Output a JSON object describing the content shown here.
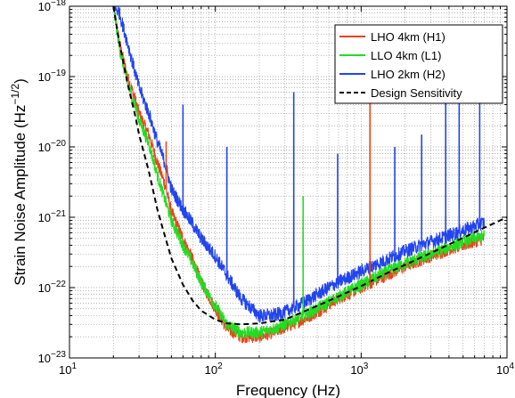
{
  "chart_data": {
    "type": "line",
    "xlabel": "Frequency (Hz)",
    "ylabel_main": "Strain Noise Amplitude (Hz",
    "ylabel_exp": "−1/2",
    "ylabel_close": ")",
    "xscale": "log",
    "yscale": "log",
    "xlim": [
      10,
      10000
    ],
    "ylim": [
      1e-23,
      1e-18
    ],
    "grid": true,
    "legend_position": "top-right",
    "x_ticks": [
      {
        "value": 10,
        "base": "10",
        "exp": "1"
      },
      {
        "value": 100,
        "base": "10",
        "exp": "2"
      },
      {
        "value": 1000,
        "base": "10",
        "exp": "3"
      },
      {
        "value": 10000,
        "base": "10",
        "exp": "4"
      }
    ],
    "y_ticks": [
      {
        "value": 1e-23,
        "base": "10",
        "exp": "−23"
      },
      {
        "value": 1e-22,
        "base": "10",
        "exp": "−22"
      },
      {
        "value": 1e-21,
        "base": "10",
        "exp": "−21"
      },
      {
        "value": 1e-20,
        "base": "10",
        "exp": "−20"
      },
      {
        "value": 1e-19,
        "base": "10",
        "exp": "−19"
      },
      {
        "value": 1e-18,
        "base": "10",
        "exp": "−18"
      }
    ],
    "series": [
      {
        "name": "LHO 4km (H1)",
        "color": "#e8461c",
        "style": "solid",
        "x": [
          20,
          22,
          25,
          28,
          30,
          35,
          40,
          45,
          50,
          60,
          70,
          80,
          100,
          120,
          150,
          200,
          250,
          300,
          400,
          500,
          700,
          1000,
          1500,
          2000,
          3000,
          4000,
          5000,
          6000,
          7000
        ],
        "y": [
          1e-18,
          3e-19,
          1e-19,
          5e-20,
          3e-20,
          1.5e-20,
          6e-21,
          3e-21,
          1.2e-21,
          5e-22,
          2.5e-22,
          1.2e-22,
          5e-23,
          2.6e-23,
          2e-23,
          2e-23,
          2.3e-23,
          2.7e-23,
          3.5e-23,
          4.5e-23,
          7e-23,
          1e-22,
          1.5e-22,
          2e-22,
          2.8e-22,
          3.5e-22,
          4e-22,
          4.5e-22,
          5e-22
        ]
      },
      {
        "name": "LLO 4km (L1)",
        "color": "#22dd22",
        "style": "solid",
        "x": [
          20,
          22,
          25,
          28,
          30,
          35,
          40,
          45,
          50,
          60,
          70,
          80,
          100,
          120,
          150,
          200,
          250,
          300,
          400,
          500,
          700,
          1000,
          1500,
          2000,
          3000,
          4000,
          5000,
          6000,
          7000
        ],
        "y": [
          1e-18,
          2.5e-19,
          8e-20,
          4e-20,
          2.4e-20,
          1.1e-20,
          4e-21,
          1.8e-21,
          9e-22,
          4e-22,
          2.2e-22,
          1.2e-22,
          5.5e-23,
          3e-23,
          2.3e-23,
          2.3e-23,
          2.6e-23,
          3e-23,
          4e-23,
          5e-23,
          7.5e-23,
          1.1e-22,
          1.7e-22,
          2.2e-22,
          3e-22,
          3.8e-22,
          4.5e-22,
          5e-22,
          5.5e-22
        ]
      },
      {
        "name": "LHO 2km (H2)",
        "color": "#2244ee",
        "style": "solid",
        "x": [
          20,
          22,
          25,
          28,
          30,
          35,
          40,
          45,
          50,
          60,
          70,
          80,
          100,
          120,
          150,
          200,
          250,
          300,
          400,
          500,
          700,
          1000,
          1500,
          2000,
          3000,
          4000,
          5000,
          6000,
          7000
        ],
        "y": [
          1e-18,
          8e-19,
          3e-19,
          1.2e-19,
          7e-20,
          3e-20,
          1.2e-20,
          6e-21,
          2.5e-21,
          1.3e-21,
          8e-22,
          5e-22,
          2.8e-22,
          1.5e-22,
          7e-23,
          4e-23,
          4e-23,
          4.5e-23,
          6e-23,
          8e-23,
          1.2e-22,
          1.7e-22,
          2.5e-22,
          3.3e-22,
          4.5e-22,
          5.5e-22,
          6.5e-22,
          7.5e-22,
          8.5e-22
        ]
      },
      {
        "name": "Design Sensitivity",
        "color": "#000000",
        "style": "dashed",
        "x": [
          20,
          22,
          25,
          28,
          30,
          35,
          40,
          45,
          50,
          60,
          70,
          80,
          100,
          120,
          150,
          200,
          300,
          500,
          700,
          1000,
          1500,
          2000,
          3000,
          5000,
          7000,
          10000
        ],
        "y": [
          1e-18,
          3e-19,
          8e-20,
          3e-20,
          1.5e-20,
          4.5e-21,
          1.3e-21,
          5.5e-22,
          2.6e-22,
          1.1e-22,
          6.5e-23,
          4.7e-23,
          3.5e-23,
          3.1e-23,
          3e-23,
          3.1e-23,
          3.5e-23,
          5.5e-23,
          7.5e-23,
          1.05e-22,
          1.6e-22,
          2.1e-22,
          3.1e-22,
          5.1e-22,
          7.1e-22,
          1e-21
        ]
      }
    ],
    "spikes": [
      {
        "series": "LHO 2km (H2)",
        "x": 120,
        "y": 1e-20
      },
      {
        "series": "LHO 2km (H2)",
        "x": 60,
        "y": 4e-20
      },
      {
        "series": "LHO 2km (H2)",
        "x": 345,
        "y": 6e-20
      },
      {
        "series": "LHO 2km (H2)",
        "x": 690,
        "y": 8e-21
      },
      {
        "series": "LLO 4km (L1)",
        "x": 1150,
        "y": 2e-19
      },
      {
        "series": "LHO 4km (H1)",
        "x": 1150,
        "y": 2e-19
      },
      {
        "series": "LHO 2km (H2)",
        "x": 1700,
        "y": 1e-20
      },
      {
        "series": "LHO 2km (H2)",
        "x": 2600,
        "y": 1.5e-20
      },
      {
        "series": "LHO 2km (H2)",
        "x": 3800,
        "y": 5e-20
      },
      {
        "series": "LHO 2km (H2)",
        "x": 4700,
        "y": 1e-19
      },
      {
        "series": "LHO 2km (H2)",
        "x": 6500,
        "y": 3e-19
      },
      {
        "series": "LHO 4km (H1)",
        "x": 46,
        "y": 1.2e-20
      },
      {
        "series": "LLO 4km (L1)",
        "x": 400,
        "y": 2e-21
      }
    ]
  }
}
